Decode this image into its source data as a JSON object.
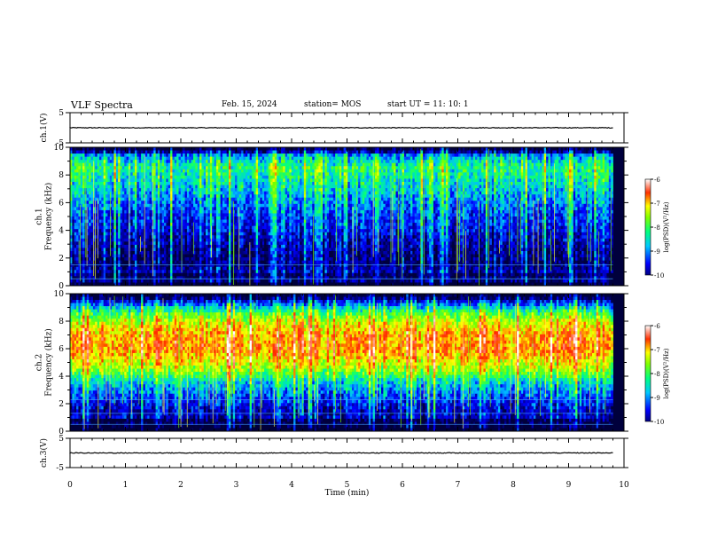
{
  "header": {
    "title": "VLF Spectra",
    "date": "Feb. 15, 2024",
    "station": "station= MOS",
    "start": "start  UT =   11: 10: 1"
  },
  "chart_data": [
    {
      "type": "line",
      "name": "ch1-waveform",
      "ylabel": "ch.1(V)",
      "ylim": [
        -5,
        5
      ],
      "yticks": [
        "5",
        "-5"
      ],
      "xlim": [
        0,
        10
      ],
      "baseline": 0,
      "color": "#000000"
    },
    {
      "type": "heatmap",
      "name": "ch1-spectrogram",
      "ylabel": "ch.1\nFrequency (kHz)",
      "ylabel_lines": [
        "ch.1",
        "Frequency (kHz)"
      ],
      "ylim": [
        0,
        10
      ],
      "yticks": [
        "0",
        "2",
        "4",
        "6",
        "8",
        "10"
      ],
      "xlim": [
        0,
        10
      ],
      "data_end_min": 9.8,
      "colorbar": {
        "label": "log(PSD)(V²/Hz)",
        "ticks": [
          "-6",
          "-7",
          "-8",
          "-9",
          "-10"
        ],
        "range": [
          -10,
          -6
        ]
      },
      "profile": [
        [
          0,
          -10.2
        ],
        [
          0.4,
          -9.3
        ],
        [
          1.5,
          -9.9
        ],
        [
          2.5,
          -9.8
        ],
        [
          4.0,
          -9.4
        ],
        [
          5.0,
          -9.2
        ],
        [
          5.8,
          -9.0
        ],
        [
          7.0,
          -8.6
        ],
        [
          8.5,
          -8.2
        ],
        [
          9.4,
          -8.8
        ],
        [
          9.8,
          -10.2
        ],
        [
          10,
          -10.3
        ]
      ],
      "lines_khz": [
        0.5,
        1.5
      ]
    },
    {
      "type": "heatmap",
      "name": "ch2-spectrogram",
      "ylabel": "ch.2\nFrequency (kHz)",
      "ylabel_lines": [
        "ch.2",
        "Frequency (kHz)"
      ],
      "ylim": [
        0,
        10
      ],
      "yticks": [
        "0",
        "2",
        "4",
        "6",
        "8",
        "10"
      ],
      "xlim": [
        0,
        10
      ],
      "data_end_min": 9.8,
      "colorbar": {
        "label": "log(PSD)(V²/Hz)",
        "ticks": [
          "-6",
          "-7",
          "-8",
          "-9",
          "-10"
        ],
        "range": [
          -10,
          -6
        ]
      },
      "profile": [
        [
          0,
          -10.2
        ],
        [
          0.5,
          -9.6
        ],
        [
          1.5,
          -9.6
        ],
        [
          2.5,
          -9.1
        ],
        [
          3.5,
          -8.6
        ],
        [
          4.5,
          -7.6
        ],
        [
          5.5,
          -7.0
        ],
        [
          6.2,
          -6.8
        ],
        [
          7.0,
          -6.9
        ],
        [
          7.8,
          -7.3
        ],
        [
          8.6,
          -8.0
        ],
        [
          9.2,
          -8.9
        ],
        [
          9.8,
          -10.2
        ],
        [
          10,
          -10.3
        ]
      ],
      "lines_khz": [
        0.5,
        1.3,
        2.3
      ]
    },
    {
      "type": "line",
      "name": "ch3-waveform",
      "ylabel": "ch.3(V)",
      "ylim": [
        -5,
        5
      ],
      "yticks": [
        "5",
        "-5"
      ],
      "xlim": [
        0,
        10
      ],
      "baseline": 0,
      "color": "#000000"
    }
  ],
  "xaxis": {
    "label": "Time  (min)",
    "ticks": [
      0,
      1,
      2,
      3,
      4,
      5,
      6,
      7,
      8,
      9,
      10
    ],
    "tick_labels": [
      "0",
      "1",
      "2",
      "3",
      "4",
      "5",
      "6",
      "7",
      "8",
      "9",
      "10"
    ]
  }
}
